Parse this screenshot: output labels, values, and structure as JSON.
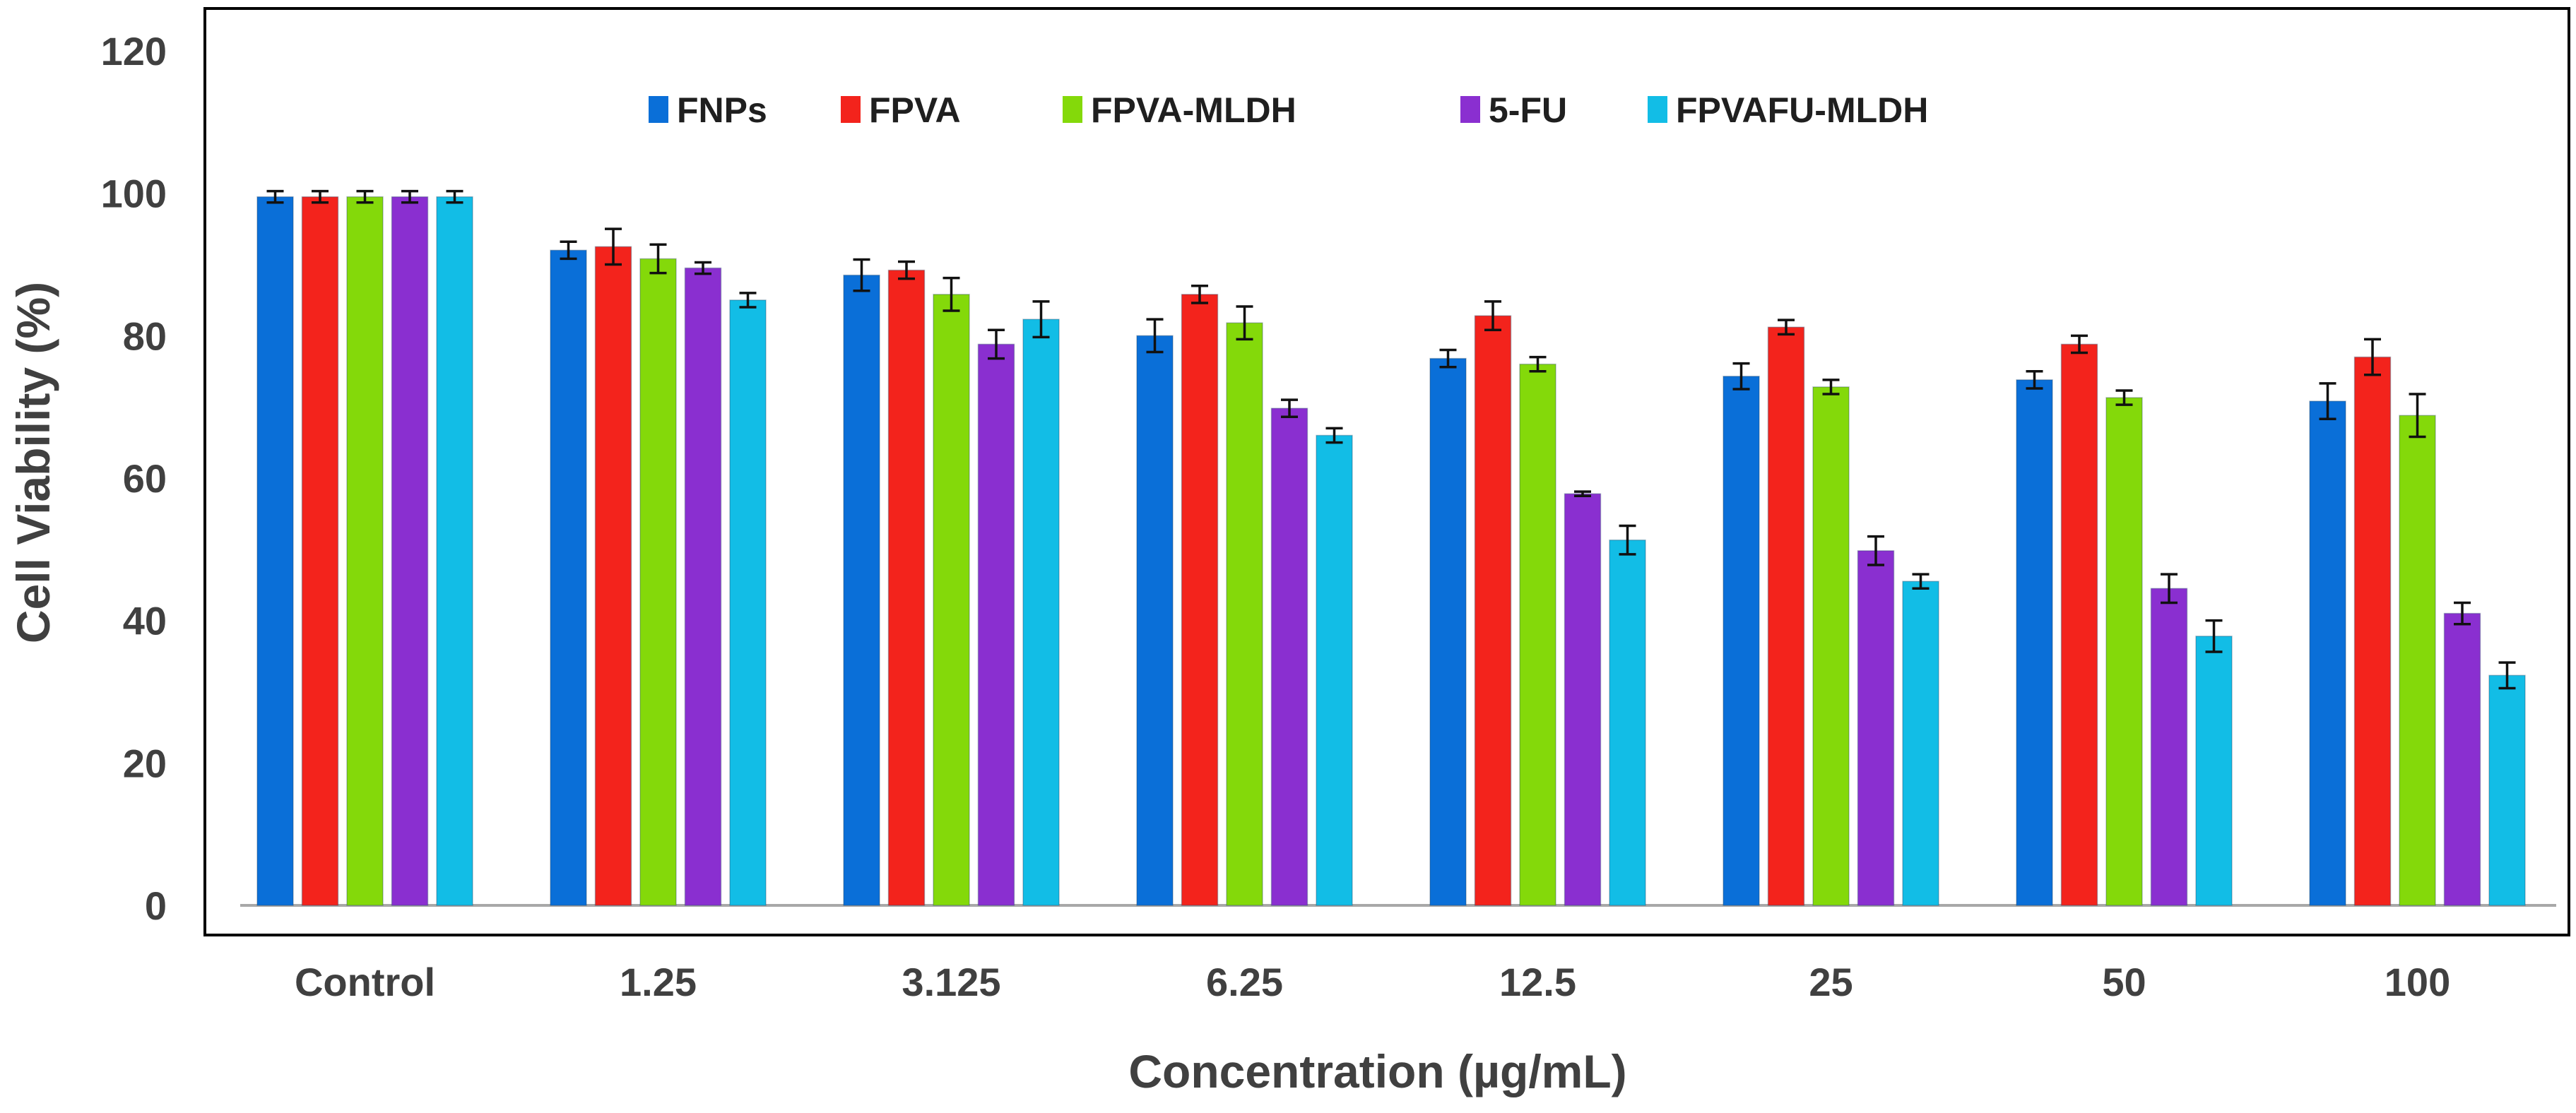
{
  "chart_data": {
    "type": "bar",
    "title": "",
    "xlabel": "Concentration (µg/mL)",
    "ylabel": "Cell Viability (%)",
    "ylim": [
      0,
      120
    ],
    "yticks": [
      0,
      20,
      40,
      60,
      80,
      100,
      120
    ],
    "grid": false,
    "legend_position": "top",
    "categories": [
      "Control",
      "1.25",
      "3.125",
      "6.25",
      "12.5",
      "25",
      "50",
      "100"
    ],
    "series": [
      {
        "name": "FNPs",
        "color": "#0a6fd8",
        "values": [
          99.5,
          92,
          88.5,
          80,
          76.8,
          74.3,
          73.8,
          70.8
        ],
        "errors": [
          0.8,
          1.2,
          2.2,
          2.3,
          1.2,
          1.8,
          1.2,
          2.5
        ]
      },
      {
        "name": "FPVA",
        "color": "#f3231c",
        "values": [
          99.5,
          92.5,
          89.2,
          85.8,
          82.8,
          81.2,
          78.8,
          77
        ],
        "errors": [
          0.8,
          2.5,
          1.2,
          1.2,
          2,
          1,
          1.2,
          2.5
        ]
      },
      {
        "name": "FPVA-MLDH",
        "color": "#84d90a",
        "values": [
          99.5,
          90.8,
          85.8,
          81.8,
          76,
          72.8,
          71.3,
          68.8
        ],
        "errors": [
          0.8,
          2,
          2.3,
          2.3,
          1,
          1,
          1,
          3
        ]
      },
      {
        "name": "5-FU",
        "color": "#8a2fd0",
        "values": [
          99.5,
          89.5,
          78.8,
          69.8,
          57.8,
          49.8,
          44.5,
          41
        ],
        "errors": [
          0.8,
          0.8,
          2,
          1.2,
          0.3,
          2,
          2,
          1.5
        ]
      },
      {
        "name": "FPVAFU-MLDH",
        "color": "#12bde6",
        "values": [
          99.5,
          85,
          82.3,
          66,
          51.3,
          45.5,
          37.8,
          32.3
        ],
        "errors": [
          0.8,
          1,
          2.5,
          1,
          2,
          1,
          2.2,
          1.8
        ]
      }
    ]
  }
}
